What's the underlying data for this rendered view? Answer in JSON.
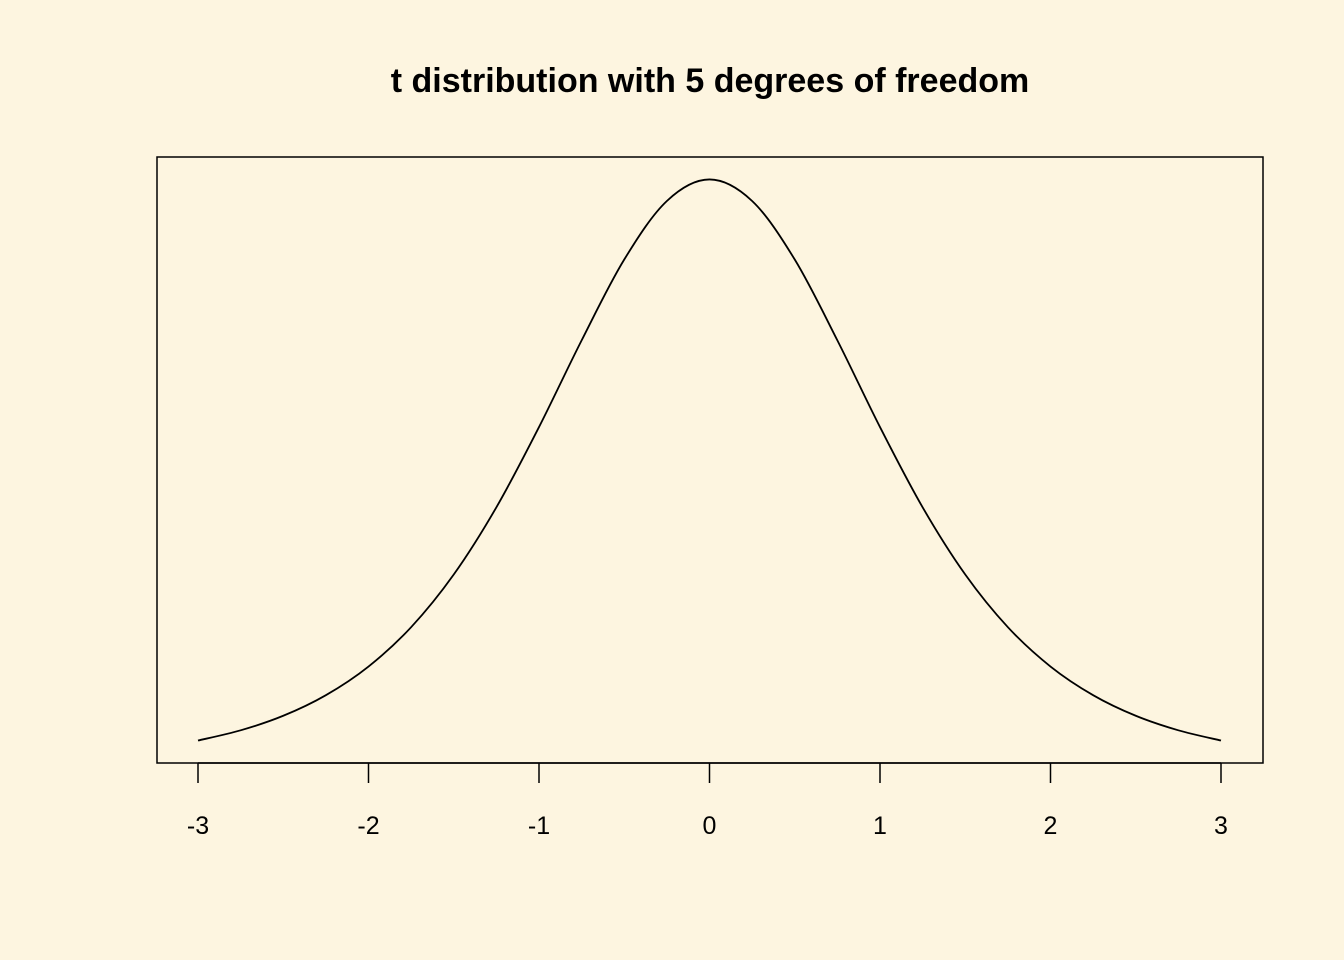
{
  "chart_data": {
    "type": "line",
    "title": "t distribution with 5 degrees of freedom",
    "xlabel": "",
    "ylabel": "",
    "xlim": [
      -3,
      3
    ],
    "ylim": [
      0.0028,
      0.3941
    ],
    "x_ticks": [
      -3,
      -2,
      -1,
      0,
      1,
      2,
      3
    ],
    "x_tick_labels": [
      "-3",
      "-2",
      "-1",
      "0",
      "1",
      "2",
      "3"
    ],
    "y_axis_shown": false,
    "grid": false,
    "background_color": "#FDF5E0",
    "line_color": "#000000",
    "series": [
      {
        "x": [
          -3,
          -2.75,
          -2.5,
          -2.25,
          -2,
          -1.75,
          -1.5,
          -1.25,
          -1,
          -0.75,
          -0.5,
          -0.25,
          0,
          0.25,
          0.5,
          0.75,
          1,
          1.25,
          1.5,
          1.75,
          2,
          2.25,
          2.5,
          2.75,
          3
        ],
        "y": [
          0.0173,
          0.0239,
          0.0333,
          0.0466,
          0.0651,
          0.0905,
          0.1245,
          0.1679,
          0.2197,
          0.2757,
          0.3279,
          0.3657,
          0.3796,
          0.3657,
          0.3279,
          0.2757,
          0.2197,
          0.1679,
          0.1245,
          0.0905,
          0.0651,
          0.0466,
          0.0333,
          0.0239,
          0.0173
        ]
      }
    ]
  }
}
